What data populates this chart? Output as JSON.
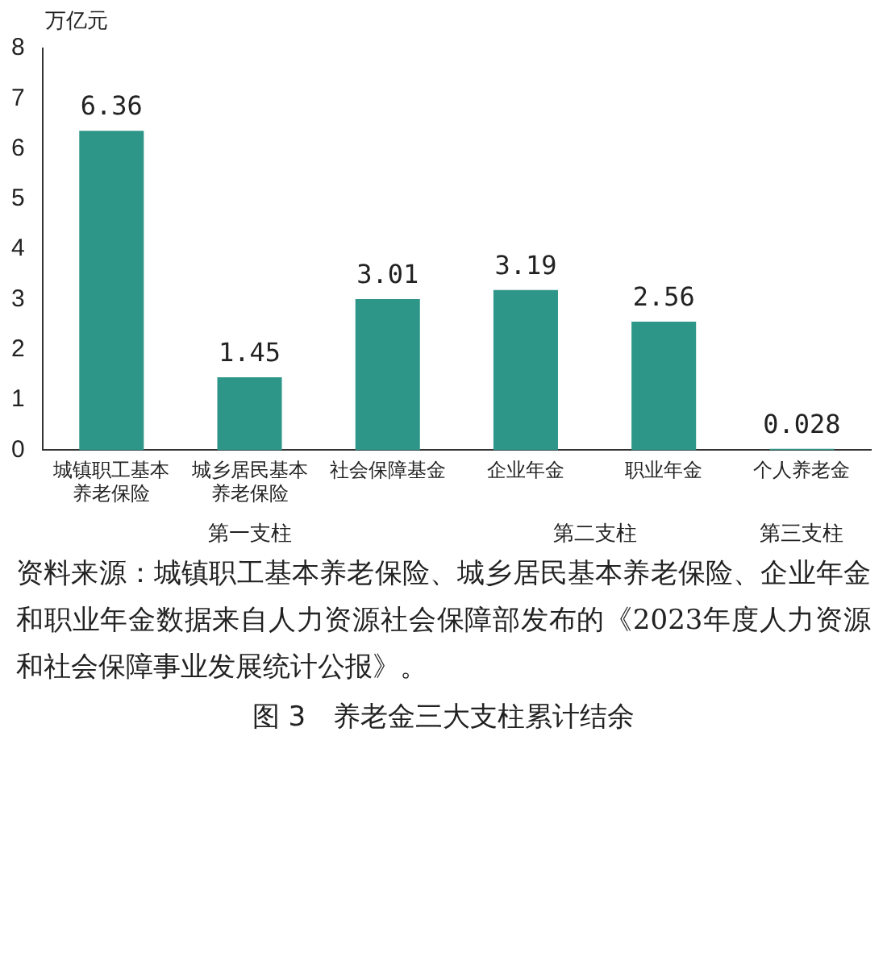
{
  "chart_data": {
    "type": "bar",
    "title": "图 3　养老金三大支柱累计结余",
    "ylabel": "万亿元",
    "categories": [
      "城镇职工基本养老保险",
      "城乡居民基本养老保险",
      "社会保障基金",
      "企业年金",
      "职业年金",
      "个人养老金"
    ],
    "values": [
      6.36,
      1.45,
      3.01,
      3.19,
      2.56,
      0.028
    ],
    "color": "#2e9688",
    "ylim": [
      0,
      8
    ],
    "yticks": [
      0,
      1,
      2,
      3,
      4,
      5,
      6,
      7,
      8
    ],
    "grid": false,
    "legend": false,
    "data_labels": true,
    "annotations": [
      "第一支柱",
      "第二支柱",
      "第三支柱",
      "资料来源：城镇职工基本养老保险、城乡居民基本养老保险、企业年金和职业年金数据来自人力资源社会保障部发布的《2023年度人力资源和社会保障事业发展统计公报》。"
    ]
  }
}
